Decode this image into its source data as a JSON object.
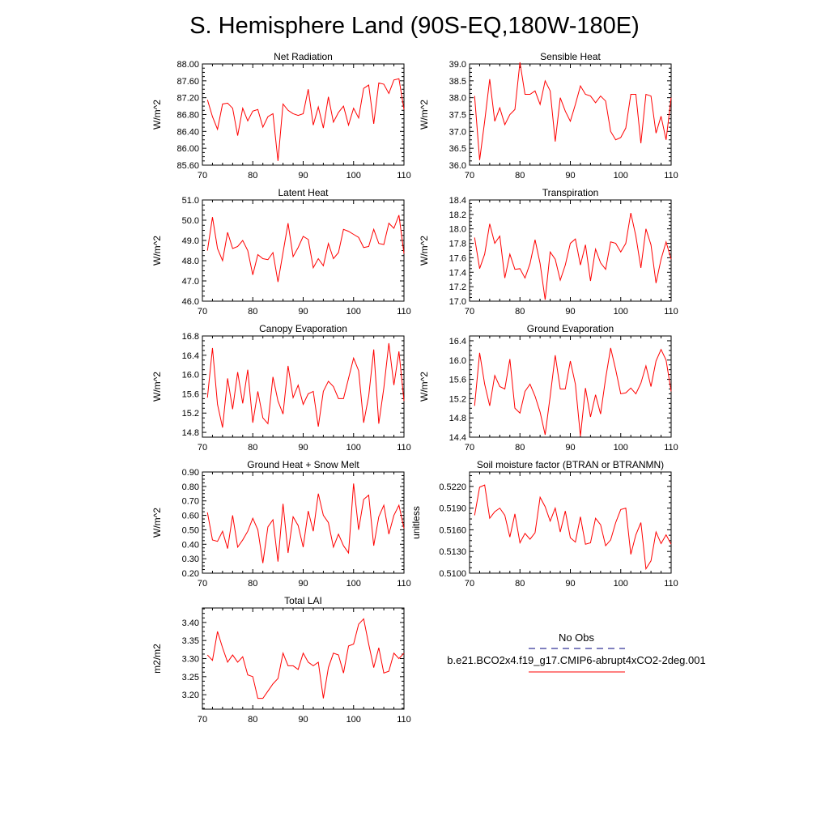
{
  "title": "S. Hemisphere Land (90S-EQ,180W-180E)",
  "colors": {
    "model": "#ff0000",
    "obs": "#00007f",
    "axis": "#000000"
  },
  "legend": {
    "obs_label": "No Obs",
    "model_label": "b.e21.BCO2x4.f19_g17.CMIP6-abrupt4xCO2-2deg.001"
  },
  "chart_data": [
    {
      "type": "line",
      "title": "Net Radiation",
      "ylabel": "W/m^2",
      "xlim": [
        70,
        110
      ],
      "ylim": [
        85.6,
        88.0
      ],
      "xticks": [
        70,
        80,
        90,
        100,
        110
      ],
      "yticks": [
        "85.60",
        "86.00",
        "86.40",
        "86.80",
        "87.20",
        "87.60",
        "88.00"
      ],
      "x": [
        71,
        72,
        73,
        74,
        75,
        76,
        77,
        78,
        79,
        80,
        81,
        82,
        83,
        84,
        85,
        86,
        87,
        88,
        89,
        90,
        91,
        92,
        93,
        94,
        95,
        96,
        97,
        98,
        99,
        100,
        101,
        102,
        103,
        104,
        105,
        106,
        107,
        108,
        109,
        110
      ],
      "series": [
        {
          "values": [
            87.15,
            86.75,
            86.45,
            87.05,
            87.07,
            86.95,
            86.3,
            86.95,
            86.65,
            86.88,
            86.92,
            86.5,
            86.75,
            86.82,
            85.7,
            87.05,
            86.9,
            86.82,
            86.78,
            86.82,
            87.4,
            86.55,
            86.98,
            86.48,
            87.22,
            86.62,
            86.85,
            87.0,
            86.55,
            86.95,
            86.72,
            87.42,
            87.5,
            86.58,
            87.55,
            87.52,
            87.3,
            87.62,
            87.65,
            86.92
          ]
        }
      ]
    },
    {
      "type": "line",
      "title": "Sensible Heat",
      "ylabel": "W/m^2",
      "xlim": [
        70,
        110
      ],
      "ylim": [
        36.0,
        39.0
      ],
      "xticks": [
        70,
        80,
        90,
        100,
        110
      ],
      "yticks": [
        "36.0",
        "36.5",
        "37.0",
        "37.5",
        "38.0",
        "38.5",
        "39.0"
      ],
      "x": [
        71,
        72,
        73,
        74,
        75,
        76,
        77,
        78,
        79,
        80,
        81,
        82,
        83,
        84,
        85,
        86,
        87,
        88,
        89,
        90,
        91,
        92,
        93,
        94,
        95,
        96,
        97,
        98,
        99,
        100,
        101,
        102,
        103,
        104,
        105,
        106,
        107,
        108,
        109,
        110
      ],
      "series": [
        {
          "values": [
            38.05,
            36.15,
            37.3,
            38.55,
            37.3,
            37.7,
            37.2,
            37.5,
            37.65,
            39.05,
            38.1,
            38.1,
            38.2,
            37.8,
            38.5,
            38.2,
            36.7,
            38.0,
            37.6,
            37.3,
            37.8,
            38.35,
            38.1,
            38.05,
            37.85,
            38.05,
            37.9,
            37.0,
            36.75,
            36.82,
            37.1,
            38.1,
            38.1,
            36.65,
            38.1,
            38.05,
            36.95,
            37.45,
            36.75,
            38.0
          ]
        }
      ]
    },
    {
      "type": "line",
      "title": "Latent Heat",
      "ylabel": "W/m^2",
      "xlim": [
        70,
        110
      ],
      "ylim": [
        46.0,
        51.0
      ],
      "xticks": [
        70,
        80,
        90,
        100,
        110
      ],
      "yticks": [
        "46.0",
        "47.0",
        "48.0",
        "49.0",
        "50.0",
        "51.0"
      ],
      "x": [
        71,
        72,
        73,
        74,
        75,
        76,
        77,
        78,
        79,
        80,
        81,
        82,
        83,
        84,
        85,
        86,
        87,
        88,
        89,
        90,
        91,
        92,
        93,
        94,
        95,
        96,
        97,
        98,
        99,
        100,
        101,
        102,
        103,
        104,
        105,
        106,
        107,
        108,
        109,
        110
      ],
      "series": [
        {
          "values": [
            48.5,
            50.15,
            48.6,
            48.0,
            49.4,
            48.6,
            48.7,
            49.0,
            48.5,
            47.3,
            48.3,
            48.1,
            48.05,
            48.4,
            46.95,
            48.4,
            49.85,
            48.2,
            48.65,
            49.2,
            49.05,
            47.65,
            48.1,
            47.75,
            48.85,
            48.1,
            48.4,
            49.55,
            49.45,
            49.3,
            49.15,
            48.65,
            48.7,
            49.55,
            48.85,
            48.8,
            49.85,
            49.6,
            50.25,
            48.35
          ]
        }
      ]
    },
    {
      "type": "line",
      "title": "Transpiration",
      "ylabel": "W/m^2",
      "xlim": [
        70,
        110
      ],
      "ylim": [
        17.0,
        18.4
      ],
      "xticks": [
        70,
        80,
        90,
        100,
        110
      ],
      "yticks": [
        "17.0",
        "17.2",
        "17.4",
        "17.6",
        "17.8",
        "18.0",
        "18.2",
        "18.4"
      ],
      "x": [
        71,
        72,
        73,
        74,
        75,
        76,
        77,
        78,
        79,
        80,
        81,
        82,
        83,
        84,
        85,
        86,
        87,
        88,
        89,
        90,
        91,
        92,
        93,
        94,
        95,
        96,
        97,
        98,
        99,
        100,
        101,
        102,
        103,
        104,
        105,
        106,
        107,
        108,
        109,
        110
      ],
      "series": [
        {
          "values": [
            17.88,
            17.45,
            17.65,
            18.07,
            17.8,
            17.9,
            17.32,
            17.65,
            17.44,
            17.45,
            17.32,
            17.52,
            17.85,
            17.52,
            17.02,
            17.68,
            17.58,
            17.29,
            17.5,
            17.8,
            17.86,
            17.5,
            17.78,
            17.28,
            17.72,
            17.53,
            17.44,
            17.82,
            17.8,
            17.68,
            17.8,
            18.22,
            17.9,
            17.46,
            18.0,
            17.78,
            17.25,
            17.58,
            17.82,
            17.58
          ]
        }
      ]
    },
    {
      "type": "line",
      "title": "Canopy Evaporation",
      "ylabel": "W/m^2",
      "xlim": [
        70,
        110
      ],
      "ylim": [
        14.7,
        16.8
      ],
      "xticks": [
        70,
        80,
        90,
        100,
        110
      ],
      "yticks": [
        "14.8",
        "15.2",
        "15.6",
        "16.0",
        "16.4",
        "16.8"
      ],
      "x": [
        71,
        72,
        73,
        74,
        75,
        76,
        77,
        78,
        79,
        80,
        81,
        82,
        83,
        84,
        85,
        86,
        87,
        88,
        89,
        90,
        91,
        92,
        93,
        94,
        95,
        96,
        97,
        98,
        99,
        100,
        101,
        102,
        103,
        104,
        105,
        106,
        107,
        108,
        109,
        110
      ],
      "series": [
        {
          "values": [
            15.52,
            16.55,
            15.38,
            14.9,
            15.92,
            15.28,
            16.05,
            15.4,
            16.1,
            15.0,
            15.65,
            15.1,
            14.98,
            15.95,
            15.45,
            15.18,
            16.18,
            15.52,
            15.78,
            15.38,
            15.6,
            15.65,
            14.92,
            15.65,
            15.86,
            15.75,
            15.5,
            15.5,
            15.92,
            16.34,
            16.08,
            15.0,
            15.55,
            16.52,
            14.98,
            15.72,
            16.65,
            15.78,
            16.48,
            15.45
          ]
        }
      ]
    },
    {
      "type": "line",
      "title": "Ground Evaporation",
      "ylabel": "W/m^2",
      "xlim": [
        70,
        110
      ],
      "ylim": [
        14.4,
        16.5
      ],
      "xticks": [
        70,
        80,
        90,
        100,
        110
      ],
      "yticks": [
        "14.4",
        "14.8",
        "15.2",
        "15.6",
        "16.0",
        "16.4"
      ],
      "x": [
        71,
        72,
        73,
        74,
        75,
        76,
        77,
        78,
        79,
        80,
        81,
        82,
        83,
        84,
        85,
        86,
        87,
        88,
        89,
        90,
        91,
        92,
        93,
        94,
        95,
        96,
        97,
        98,
        99,
        100,
        101,
        102,
        103,
        104,
        105,
        106,
        107,
        108,
        109,
        110
      ],
      "series": [
        {
          "values": [
            15.05,
            16.15,
            15.5,
            15.05,
            15.68,
            15.45,
            15.4,
            16.02,
            15.0,
            14.9,
            15.35,
            15.5,
            15.25,
            14.92,
            14.45,
            15.25,
            16.1,
            15.4,
            15.4,
            15.98,
            15.5,
            14.42,
            15.42,
            14.82,
            15.28,
            14.88,
            15.62,
            16.25,
            15.8,
            15.3,
            15.32,
            15.42,
            15.3,
            15.52,
            15.88,
            15.45,
            15.98,
            16.22,
            16.0,
            15.35
          ]
        }
      ]
    },
    {
      "type": "line",
      "title": "Ground Heat + Snow Melt",
      "ylabel": "W/m^2",
      "xlim": [
        70,
        110
      ],
      "ylim": [
        0.2,
        0.9
      ],
      "xticks": [
        70,
        80,
        90,
        100,
        110
      ],
      "yticks": [
        "0.20",
        "0.30",
        "0.40",
        "0.50",
        "0.60",
        "0.70",
        "0.80",
        "0.90"
      ],
      "x": [
        71,
        72,
        73,
        74,
        75,
        76,
        77,
        78,
        79,
        80,
        81,
        82,
        83,
        84,
        85,
        86,
        87,
        88,
        89,
        90,
        91,
        92,
        93,
        94,
        95,
        96,
        97,
        98,
        99,
        100,
        101,
        102,
        103,
        104,
        105,
        106,
        107,
        108,
        109,
        110
      ],
      "series": [
        {
          "values": [
            0.62,
            0.43,
            0.42,
            0.49,
            0.37,
            0.6,
            0.38,
            0.43,
            0.49,
            0.58,
            0.5,
            0.27,
            0.52,
            0.57,
            0.28,
            0.68,
            0.34,
            0.59,
            0.53,
            0.38,
            0.63,
            0.49,
            0.75,
            0.6,
            0.55,
            0.38,
            0.47,
            0.39,
            0.34,
            0.82,
            0.5,
            0.71,
            0.74,
            0.39,
            0.59,
            0.67,
            0.47,
            0.6,
            0.67,
            0.51
          ]
        }
      ]
    },
    {
      "type": "line",
      "title": "Soil moisture factor (BTRAN or BTRANMN)",
      "ylabel": "unitless",
      "xlim": [
        70,
        110
      ],
      "ylim": [
        0.51,
        0.524
      ],
      "xticks": [
        70,
        80,
        90,
        100,
        110
      ],
      "yticks": [
        "0.5100",
        "0.5130",
        "0.5160",
        "0.5190",
        "0.5220"
      ],
      "x": [
        71,
        72,
        73,
        74,
        75,
        76,
        77,
        78,
        79,
        80,
        81,
        82,
        83,
        84,
        85,
        86,
        87,
        88,
        89,
        90,
        91,
        92,
        93,
        94,
        95,
        96,
        97,
        98,
        99,
        100,
        101,
        102,
        103,
        104,
        105,
        106,
        107,
        108,
        109,
        110
      ],
      "series": [
        {
          "values": [
            0.518,
            0.5219,
            0.5222,
            0.5176,
            0.5185,
            0.519,
            0.518,
            0.515,
            0.5182,
            0.5142,
            0.5155,
            0.5147,
            0.5156,
            0.5205,
            0.5192,
            0.5172,
            0.519,
            0.5157,
            0.5186,
            0.5149,
            0.5143,
            0.5178,
            0.514,
            0.5142,
            0.5176,
            0.5167,
            0.5138,
            0.5146,
            0.517,
            0.5188,
            0.519,
            0.5126,
            0.5153,
            0.517,
            0.5106,
            0.5117,
            0.5157,
            0.5141,
            0.5153,
            0.514
          ]
        }
      ]
    },
    {
      "type": "line",
      "title": "Total LAI",
      "ylabel": "m2/m2",
      "xlim": [
        70,
        110
      ],
      "ylim": [
        3.16,
        3.44
      ],
      "xticks": [
        70,
        80,
        90,
        100,
        110
      ],
      "yticks": [
        "3.20",
        "3.25",
        "3.30",
        "3.35",
        "3.40"
      ],
      "x": [
        71,
        72,
        73,
        74,
        75,
        76,
        77,
        78,
        79,
        80,
        81,
        82,
        83,
        84,
        85,
        86,
        87,
        88,
        89,
        90,
        91,
        92,
        93,
        94,
        95,
        96,
        97,
        98,
        99,
        100,
        101,
        102,
        103,
        104,
        105,
        106,
        107,
        108,
        109,
        110
      ],
      "series": [
        {
          "values": [
            3.31,
            3.295,
            3.375,
            3.33,
            3.29,
            3.31,
            3.29,
            3.305,
            3.255,
            3.25,
            3.19,
            3.19,
            3.21,
            3.23,
            3.245,
            3.315,
            3.28,
            3.28,
            3.27,
            3.315,
            3.29,
            3.28,
            3.29,
            3.19,
            3.275,
            3.315,
            3.31,
            3.26,
            3.335,
            3.34,
            3.395,
            3.41,
            3.34,
            3.275,
            3.33,
            3.26,
            3.265,
            3.315,
            3.3,
            3.315
          ]
        }
      ]
    }
  ]
}
